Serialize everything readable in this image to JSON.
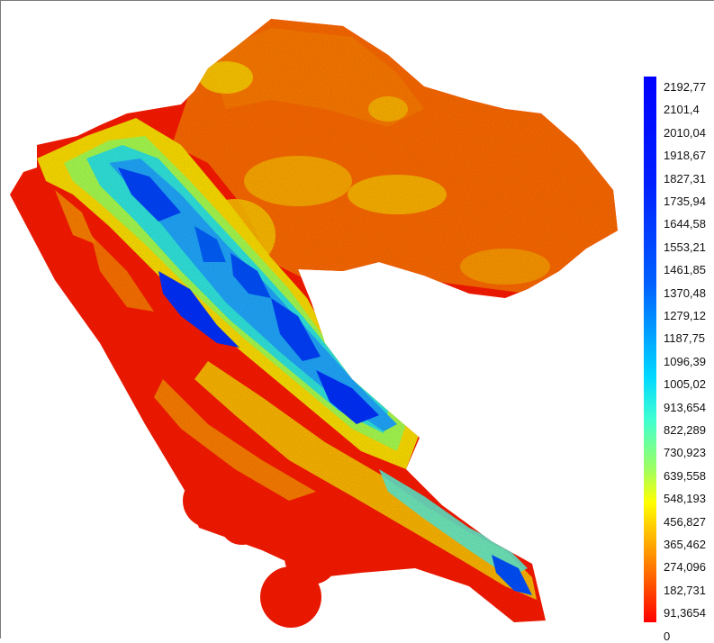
{
  "map": {
    "legend": {
      "colormap": "jet",
      "top_color": "#0000ff",
      "bottom_color": "#ff0000",
      "labels": [
        "2192,77",
        "2101,4",
        "2010,04",
        "1918,67",
        "1827,31",
        "1735,94",
        "1644,58",
        "1553,21",
        "1461,85",
        "1370,48",
        "1279,12",
        "1187,75",
        "1096,39",
        "1005,02",
        "913,654",
        "822,289",
        "730,923",
        "639,558",
        "548,193",
        "456,827",
        "365,462",
        "274,096",
        "182,731",
        "91,3654",
        "0"
      ]
    }
  }
}
